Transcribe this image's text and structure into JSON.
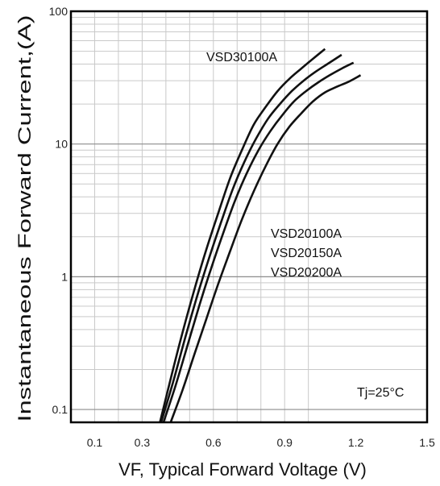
{
  "chart_data": {
    "type": "line",
    "title": "",
    "xlabel": "VF, Typical Forward Voltage (V)",
    "ylabel": "Instantaneous Forward Current,(A)",
    "x_scale": "linear",
    "y_scale": "log",
    "xlim": [
      0,
      1.5
    ],
    "ylim": [
      0.08,
      100
    ],
    "x_ticks": [
      0.1,
      0.3,
      0.6,
      0.9,
      1.2,
      1.5
    ],
    "x_tick_labels": [
      "0.1",
      "0.3",
      "0.6",
      "0.9",
      "1.2",
      "1.5"
    ],
    "y_ticks": [
      0.1,
      1,
      10,
      100
    ],
    "y_tick_labels": [
      "0.1",
      "1",
      "10",
      "100"
    ],
    "grid": true,
    "annotations": [
      {
        "text": "VSD30100A"
      },
      {
        "text": "VSD20100A"
      },
      {
        "text": "VSD20150A"
      },
      {
        "text": "VSD20200A"
      },
      {
        "text": "Tj=25°C"
      }
    ],
    "series": [
      {
        "x": [
          0.375,
          0.42,
          0.47,
          0.52,
          0.57,
          0.62,
          0.67,
          0.72,
          0.77,
          0.82,
          0.87,
          0.92,
          0.97,
          1.02,
          1.07
        ],
        "y": [
          0.08,
          0.17,
          0.38,
          0.8,
          1.6,
          3.0,
          5.5,
          9.0,
          14,
          19,
          25,
          31,
          37,
          44,
          52
        ]
      },
      {
        "x": [
          0.38,
          0.43,
          0.48,
          0.53,
          0.58,
          0.63,
          0.68,
          0.73,
          0.78,
          0.83,
          0.88,
          0.93,
          0.98,
          1.03,
          1.08,
          1.14
        ],
        "y": [
          0.08,
          0.16,
          0.34,
          0.7,
          1.35,
          2.5,
          4.5,
          7.3,
          11,
          15.5,
          20,
          25,
          30,
          35,
          40,
          47
        ]
      },
      {
        "x": [
          0.39,
          0.44,
          0.49,
          0.54,
          0.59,
          0.64,
          0.69,
          0.74,
          0.79,
          0.84,
          0.89,
          0.94,
          0.99,
          1.04,
          1.09,
          1.14,
          1.19
        ],
        "y": [
          0.08,
          0.15,
          0.3,
          0.6,
          1.15,
          2.1,
          3.7,
          6.0,
          9.0,
          12.5,
          16.5,
          21,
          25,
          29,
          33,
          37,
          41
        ]
      },
      {
        "x": [
          0.42,
          0.47,
          0.52,
          0.57,
          0.62,
          0.67,
          0.72,
          0.77,
          0.82,
          0.87,
          0.92,
          0.97,
          1.02,
          1.07,
          1.12,
          1.17,
          1.22
        ],
        "y": [
          0.08,
          0.14,
          0.26,
          0.48,
          0.88,
          1.55,
          2.7,
          4.4,
          6.8,
          10,
          13.5,
          17,
          21,
          24.5,
          27,
          29.5,
          33
        ]
      }
    ]
  }
}
